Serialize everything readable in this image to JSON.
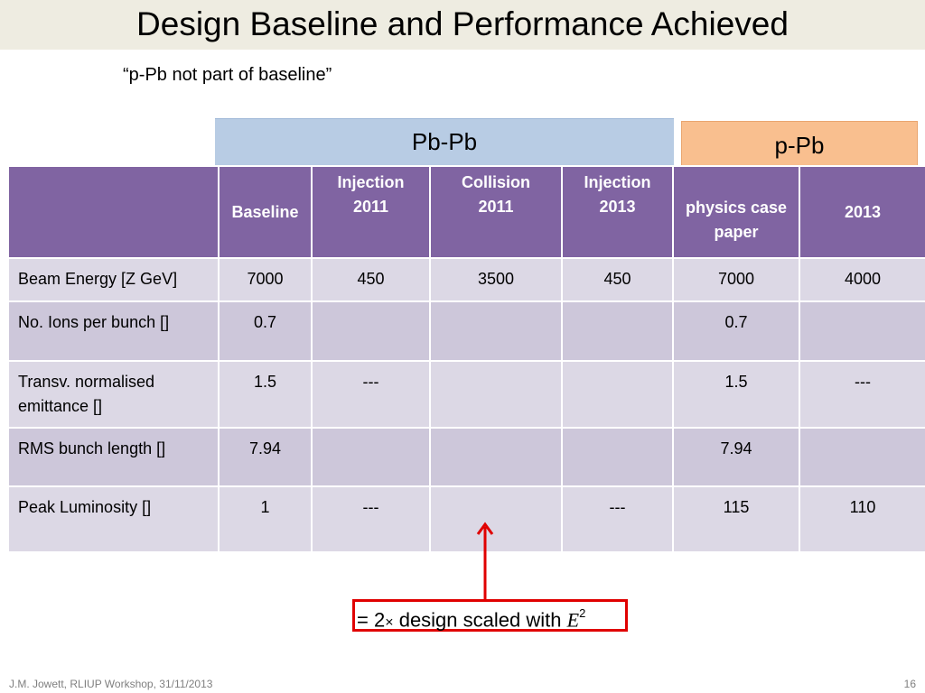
{
  "slide": {
    "title": "Design Baseline and Performance Achieved",
    "quote": "“p-Pb not part of baseline”"
  },
  "group_headers": {
    "pbpb": "Pb-Pb",
    "ppb": "p-Pb"
  },
  "table": {
    "columns": [
      "",
      "Baseline",
      "Injection 2011",
      "Collision 2011",
      "Injection 2013",
      "physics case paper",
      "2013"
    ],
    "column_lines": [
      [
        ""
      ],
      [
        "Baseline"
      ],
      [
        "Injection",
        "2011"
      ],
      [
        "Collision",
        "2011"
      ],
      [
        "Injection",
        "2013"
      ],
      [
        "physics case",
        "paper"
      ],
      [
        "2013"
      ]
    ],
    "rows": [
      {
        "label": "Beam Energy [Z GeV]",
        "cells": [
          "7000",
          "450",
          "3500",
          "450",
          "7000",
          "4000"
        ]
      },
      {
        "label": "No. Ions per bunch []",
        "cells": [
          "0.7",
          "",
          "",
          "",
          "0.7",
          ""
        ]
      },
      {
        "label": "Transv. normalised emittance []",
        "cells": [
          "1.5",
          "---",
          "",
          "",
          "1.5",
          "---"
        ]
      },
      {
        "label": "RMS bunch length []",
        "cells": [
          "7.94",
          "",
          "",
          "",
          "7.94",
          ""
        ]
      },
      {
        "label": "Peak Luminosity []",
        "cells": [
          "1",
          "---",
          "",
          "---",
          "115",
          "110"
        ]
      }
    ]
  },
  "annotation": {
    "eq_sign": "=",
    "factor": "2",
    "times": "×",
    "text": "design scaled with",
    "var": "E",
    "exp": "2",
    "arrow_color": "#e00000"
  },
  "footer": {
    "left": "J.M. Jowett, RLIUP Workshop, 31/11/2013",
    "page": "16"
  },
  "colors": {
    "header_purple": "#8064a2",
    "row_light": "#dcd8e5",
    "row_dark": "#cdc7da",
    "pbpb_blue": "#b8cce4",
    "ppb_orange": "#f9bf8f",
    "title_bar": "#eeece1"
  }
}
